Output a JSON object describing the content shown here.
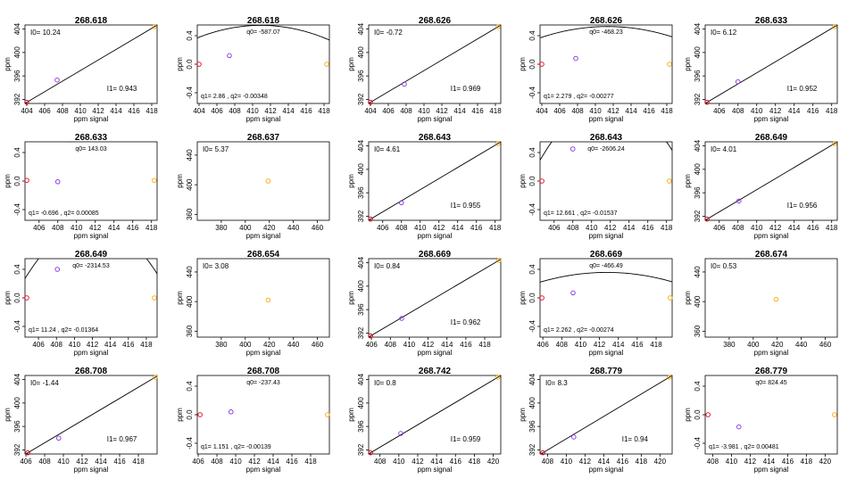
{
  "figure": {
    "xlabel": "ppm signal",
    "ylabel": "ppm"
  },
  "colors": {
    "p0": "#e8001c",
    "p1": "#8a2be2",
    "p2": "#ffa500",
    "line": "#000000"
  },
  "chart_data": [
    {
      "type": "scatter",
      "fit": "linear",
      "title": "268.618",
      "xlim": [
        403.8,
        418.6
      ],
      "xticks": [
        404,
        406,
        408,
        410,
        412,
        414,
        416,
        418
      ],
      "ylim": [
        391.3,
        404.7
      ],
      "yticks": [
        392,
        396,
        400,
        404
      ],
      "points": [
        [
          404.0,
          391.5
        ],
        [
          407.4,
          395.3
        ],
        [
          418.3,
          404.4
        ]
      ],
      "ann": [
        {
          "label": "I0=",
          "value": "10.24",
          "pos": "top-left"
        },
        {
          "label": "I1=",
          "value": "0.943",
          "pos": "bottom-right"
        }
      ]
    },
    {
      "type": "scatter",
      "fit": "quadratic",
      "title": "268.618",
      "xlim": [
        403.8,
        418.6
      ],
      "xticks": [
        404,
        406,
        408,
        410,
        412,
        414,
        416,
        418
      ],
      "ylim": [
        -0.55,
        0.55
      ],
      "yticks": [
        -0.4,
        0.0,
        0.4
      ],
      "curve": {
        "q0": -587.07,
        "q1": 2.86,
        "q2": -0.00348
      },
      "points": [
        [
          404.0,
          0.0
        ],
        [
          407.4,
          0.12
        ],
        [
          418.3,
          0.0
        ]
      ],
      "ann": [
        {
          "label": "q0=",
          "value": "-587.07",
          "pos": "top-center"
        },
        {
          "label": "q1=",
          "value": "2.86 , q2= -0.00348",
          "pos": "bottom-left"
        }
      ]
    },
    {
      "type": "scatter",
      "fit": "linear",
      "title": "268.626",
      "xlim": [
        403.8,
        418.6
      ],
      "xticks": [
        404,
        406,
        408,
        410,
        412,
        414,
        416,
        418
      ],
      "ylim": [
        391.3,
        404.7
      ],
      "yticks": [
        392,
        396,
        400,
        404
      ],
      "points": [
        [
          404.0,
          391.5
        ],
        [
          407.8,
          394.6
        ],
        [
          418.3,
          404.4
        ]
      ],
      "ann": [
        {
          "label": "I0=",
          "value": "-0.72",
          "pos": "top-left"
        },
        {
          "label": "I1=",
          "value": "0.969",
          "pos": "bottom-right"
        }
      ]
    },
    {
      "type": "scatter",
      "fit": "quadratic",
      "title": "268.626",
      "xlim": [
        403.8,
        418.6
      ],
      "xticks": [
        404,
        406,
        408,
        410,
        412,
        414,
        416,
        418
      ],
      "ylim": [
        -0.55,
        0.55
      ],
      "yticks": [
        -0.4,
        0.0,
        0.4
      ],
      "curve": {
        "q0": -468.23,
        "q1": 2.279,
        "q2": -0.00277
      },
      "points": [
        [
          404.0,
          0.0
        ],
        [
          407.8,
          0.08
        ],
        [
          418.3,
          0.0
        ]
      ],
      "ann": [
        {
          "label": "q0=",
          "value": "-468.23",
          "pos": "top-center"
        },
        {
          "label": "q1=",
          "value": "2.279 , q2= -0.00277",
          "pos": "bottom-left"
        }
      ]
    },
    {
      "type": "scatter",
      "fit": "linear",
      "title": "268.633",
      "xlim": [
        404.5,
        418.6
      ],
      "xticks": [
        406,
        408,
        410,
        412,
        414,
        416,
        418
      ],
      "ylim": [
        391.3,
        404.7
      ],
      "yticks": [
        392,
        396,
        400,
        404
      ],
      "points": [
        [
          404.7,
          391.5
        ],
        [
          408.0,
          395.0
        ],
        [
          418.3,
          404.4
        ]
      ],
      "ann": [
        {
          "label": "I0=",
          "value": "6.12",
          "pos": "top-left"
        },
        {
          "label": "I1=",
          "value": "0.952",
          "pos": "bottom-right"
        }
      ]
    },
    {
      "type": "scatter",
      "fit": "quadratic",
      "title": "268.633",
      "xlim": [
        404.5,
        418.6
      ],
      "xticks": [
        406,
        408,
        410,
        412,
        414,
        416,
        418
      ],
      "ylim": [
        -0.55,
        0.55
      ],
      "yticks": [
        -0.4,
        0.0,
        0.4
      ],
      "curve": {
        "q0": 143.03,
        "q1": -0.696,
        "q2": 0.00085
      },
      "points": [
        [
          404.7,
          0.01
        ],
        [
          408.0,
          -0.01
        ],
        [
          418.3,
          0.01
        ]
      ],
      "ann": [
        {
          "label": "q0=",
          "value": "143.03",
          "pos": "top-center"
        },
        {
          "label": "q1=",
          "value": "-0.696 , q2= 0.00085",
          "pos": "bottom-left"
        }
      ]
    },
    {
      "type": "scatter",
      "fit": "none",
      "title": "268.637",
      "xlim": [
        360,
        470
      ],
      "xticks": [
        380,
        400,
        420,
        440,
        460
      ],
      "ylim": [
        352,
        458
      ],
      "yticks": [
        360,
        400,
        440
      ],
      "points": [
        [
          419.0,
          405.0
        ]
      ],
      "colors": [
        "p2"
      ],
      "ann": [
        {
          "label": "I0=",
          "value": "5.37",
          "pos": "top-left"
        }
      ]
    },
    {
      "type": "scatter",
      "fit": "linear",
      "title": "268.643",
      "xlim": [
        404.5,
        418.6
      ],
      "xticks": [
        406,
        408,
        410,
        412,
        414,
        416,
        418
      ],
      "ylim": [
        391.3,
        404.7
      ],
      "yticks": [
        392,
        396,
        400,
        404
      ],
      "points": [
        [
          404.7,
          391.5
        ],
        [
          408.0,
          394.3
        ],
        [
          418.3,
          404.4
        ]
      ],
      "ann": [
        {
          "label": "I0=",
          "value": "4.61",
          "pos": "top-left"
        },
        {
          "label": "I1=",
          "value": "0.955",
          "pos": "bottom-right"
        }
      ]
    },
    {
      "type": "scatter",
      "fit": "quadratic",
      "title": "268.643",
      "xlim": [
        404.5,
        418.6
      ],
      "xticks": [
        406,
        408,
        410,
        412,
        414,
        416,
        418
      ],
      "ylim": [
        -0.55,
        0.55
      ],
      "yticks": [
        -0.4,
        0.0,
        0.4
      ],
      "curve": {
        "q0": -2606.24,
        "q1": 12.661,
        "q2": -0.01537
      },
      "points": [
        [
          404.7,
          0.0
        ],
        [
          408.0,
          0.45
        ],
        [
          418.3,
          0.0
        ]
      ],
      "ann": [
        {
          "label": "q0=",
          "value": "-2606.24",
          "pos": "top-center"
        },
        {
          "label": "q1=",
          "value": "12.661 , q2= -0.01537",
          "pos": "bottom-left"
        }
      ]
    },
    {
      "type": "scatter",
      "fit": "linear",
      "title": "268.649",
      "xlim": [
        404.5,
        418.6
      ],
      "xticks": [
        406,
        408,
        410,
        412,
        414,
        416,
        418
      ],
      "ylim": [
        391.3,
        404.7
      ],
      "yticks": [
        392,
        396,
        400,
        404
      ],
      "points": [
        [
          404.7,
          391.5
        ],
        [
          408.1,
          394.6
        ],
        [
          418.3,
          404.4
        ]
      ],
      "ann": [
        {
          "label": "I0=",
          "value": "4.01",
          "pos": "top-left"
        },
        {
          "label": "I1=",
          "value": "0.956",
          "pos": "bottom-right"
        }
      ]
    },
    {
      "type": "scatter",
      "fit": "quadratic",
      "title": "268.649",
      "xlim": [
        404.5,
        419.2
      ],
      "xticks": [
        406,
        408,
        410,
        412,
        414,
        416,
        418
      ],
      "ylim": [
        -0.55,
        0.55
      ],
      "yticks": [
        -0.4,
        0.0,
        0.4
      ],
      "curve": {
        "q0": -2314.53,
        "q1": 11.24,
        "q2": -0.01364
      },
      "points": [
        [
          404.7,
          0.0
        ],
        [
          408.1,
          0.4
        ],
        [
          418.9,
          0.0
        ]
      ],
      "ann": [
        {
          "label": "q0=",
          "value": "-2314.53",
          "pos": "top-center"
        },
        {
          "label": "q1=",
          "value": "11.24 , q2= -0.01364",
          "pos": "bottom-left"
        }
      ]
    },
    {
      "type": "scatter",
      "fit": "none",
      "title": "268.654",
      "xlim": [
        360,
        470
      ],
      "xticks": [
        380,
        400,
        420,
        440,
        460
      ],
      "ylim": [
        352,
        458
      ],
      "yticks": [
        360,
        400,
        440
      ],
      "points": [
        [
          419.0,
          402.0
        ]
      ],
      "colors": [
        "p2"
      ],
      "ann": [
        {
          "label": "I0=",
          "value": "3.08",
          "pos": "top-left"
        }
      ]
    },
    {
      "type": "scatter",
      "fit": "linear",
      "title": "268.669",
      "xlim": [
        405.7,
        419.7
      ],
      "xticks": [
        406,
        408,
        410,
        412,
        414,
        416,
        418
      ],
      "ylim": [
        391.3,
        404.7
      ],
      "yticks": [
        392,
        396,
        400,
        404
      ],
      "points": [
        [
          405.9,
          391.5
        ],
        [
          409.2,
          394.5
        ],
        [
          419.5,
          404.4
        ]
      ],
      "ann": [
        {
          "label": "I0=",
          "value": "0.84",
          "pos": "top-left"
        },
        {
          "label": "I1=",
          "value": "0.962",
          "pos": "bottom-right"
        }
      ]
    },
    {
      "type": "scatter",
      "fit": "quadratic",
      "title": "268.669",
      "xlim": [
        405.7,
        419.7
      ],
      "xticks": [
        406,
        408,
        410,
        412,
        414,
        416,
        418
      ],
      "ylim": [
        -0.55,
        0.55
      ],
      "yticks": [
        -0.4,
        0.0,
        0.4
      ],
      "curve": {
        "q0": -466.49,
        "q1": 2.262,
        "q2": -0.00274
      },
      "points": [
        [
          405.9,
          0.0
        ],
        [
          409.2,
          0.07
        ],
        [
          419.5,
          0.0
        ]
      ],
      "ann": [
        {
          "label": "q0=",
          "value": "-466.49",
          "pos": "top-center"
        },
        {
          "label": "q1=",
          "value": "2.262 , q2= -0.00274",
          "pos": "bottom-left"
        }
      ]
    },
    {
      "type": "scatter",
      "fit": "none",
      "title": "268.674",
      "xlim": [
        360,
        470
      ],
      "xticks": [
        380,
        400,
        420,
        440,
        460
      ],
      "ylim": [
        352,
        458
      ],
      "yticks": [
        360,
        400,
        440
      ],
      "points": [
        [
          419.0,
          403.0
        ]
      ],
      "colors": [
        "p2"
      ],
      "ann": [
        {
          "label": "I0=",
          "value": "0.53",
          "pos": "top-left"
        }
      ]
    },
    {
      "type": "scatter",
      "fit": "linear",
      "title": "268.708",
      "xlim": [
        405.9,
        420.0
      ],
      "xticks": [
        406,
        408,
        410,
        412,
        414,
        416,
        418
      ],
      "ylim": [
        391.3,
        404.7
      ],
      "yticks": [
        392,
        396,
        400,
        404
      ],
      "points": [
        [
          406.2,
          391.5
        ],
        [
          409.5,
          394.0
        ],
        [
          419.8,
          404.4
        ]
      ],
      "ann": [
        {
          "label": "I0=",
          "value": "-1.44",
          "pos": "top-left"
        },
        {
          "label": "I1=",
          "value": "0.967",
          "pos": "bottom-right"
        }
      ]
    },
    {
      "type": "scatter",
      "fit": "quadratic",
      "title": "268.708",
      "xlim": [
        405.9,
        420.0
      ],
      "xticks": [
        406,
        408,
        410,
        412,
        414,
        416,
        418
      ],
      "ylim": [
        -0.55,
        0.55
      ],
      "yticks": [
        -0.4,
        0.0,
        0.4
      ],
      "curve": {
        "q0": -237.43,
        "q1": 1.151,
        "q2": -0.00139
      },
      "points": [
        [
          406.2,
          0.0
        ],
        [
          409.5,
          0.04
        ],
        [
          419.8,
          0.0
        ]
      ],
      "ann": [
        {
          "label": "q0=",
          "value": "-237.43",
          "pos": "top-center"
        },
        {
          "label": "q1=",
          "value": "1.151 , q2= -0.00139",
          "pos": "bottom-left"
        }
      ]
    },
    {
      "type": "scatter",
      "fit": "linear",
      "title": "268.742",
      "xlim": [
        406.8,
        420.8
      ],
      "xticks": [
        408,
        410,
        412,
        414,
        416,
        418,
        420
      ],
      "ylim": [
        391.3,
        404.7
      ],
      "yticks": [
        392,
        396,
        400,
        404
      ],
      "points": [
        [
          407.0,
          391.5
        ],
        [
          410.2,
          394.8
        ],
        [
          420.5,
          404.4
        ]
      ],
      "ann": [
        {
          "label": "I0=",
          "value": "0.8",
          "pos": "top-left"
        },
        {
          "label": "I1=",
          "value": "0.959",
          "pos": "bottom-right"
        }
      ]
    },
    {
      "type": "scatter",
      "fit": "linear",
      "title": "268.779",
      "xlim": [
        407.2,
        421.3
      ],
      "xticks": [
        408,
        410,
        412,
        414,
        416,
        418,
        420
      ],
      "ylim": [
        391.3,
        404.7
      ],
      "yticks": [
        392,
        396,
        400,
        404
      ],
      "points": [
        [
          407.5,
          391.5
        ],
        [
          410.8,
          394.2
        ],
        [
          421.0,
          404.4
        ]
      ],
      "ann": [
        {
          "label": "I0=",
          "value": "8.3",
          "pos": "top-left"
        },
        {
          "label": "I1=",
          "value": "0.94",
          "pos": "bottom-right"
        }
      ]
    },
    {
      "type": "scatter",
      "fit": "quadratic",
      "title": "268.779",
      "xlim": [
        407.2,
        421.3
      ],
      "xticks": [
        408,
        410,
        412,
        414,
        416,
        418,
        420
      ],
      "ylim": [
        -0.55,
        0.55
      ],
      "yticks": [
        -0.4,
        0.0,
        0.4
      ],
      "curve": {
        "q0": 824.45,
        "q1": -3.981,
        "q2": 0.00481
      },
      "points": [
        [
          407.5,
          0.0
        ],
        [
          410.8,
          -0.17
        ],
        [
          421.0,
          0.0
        ]
      ],
      "ann": [
        {
          "label": "q0=",
          "value": "824.45",
          "pos": "top-center"
        },
        {
          "label": "q1=",
          "value": "-3.981 , q2= 0.00481",
          "pos": "bottom-left"
        }
      ]
    }
  ]
}
